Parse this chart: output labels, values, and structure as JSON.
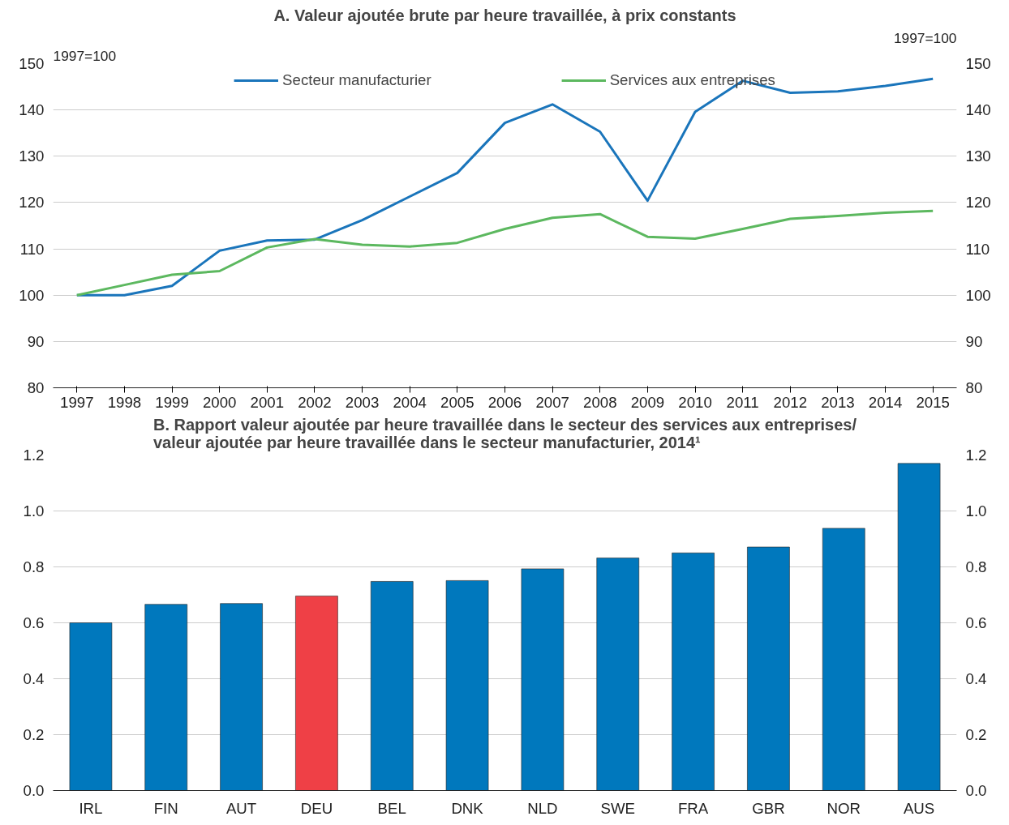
{
  "chart_data": [
    {
      "type": "line",
      "title": "A. Valeur ajoutée brute par heure travaillée, à prix constants",
      "ylabel": "1997=100",
      "y2label": "1997=100",
      "x": [
        1997,
        1998,
        1999,
        2000,
        2001,
        2002,
        2003,
        2004,
        2005,
        2006,
        2007,
        2008,
        2009,
        2010,
        2011,
        2012,
        2013,
        2014,
        2015
      ],
      "series": [
        {
          "name": "Secteur manufacturier",
          "color": "#1a75bb",
          "values": [
            100,
            100,
            102,
            109.6,
            111.8,
            112,
            116.2,
            121.3,
            126.4,
            137.2,
            141.2,
            135.3,
            120.4,
            139.6,
            146.3,
            143.7,
            144,
            145.2,
            146.7
          ]
        },
        {
          "name": "Services aux entreprises",
          "color": "#5cb85f",
          "values": [
            100,
            102.2,
            104.4,
            105.2,
            110.3,
            112.1,
            110.9,
            110.5,
            111.3,
            114.3,
            116.7,
            117.5,
            112.6,
            112.2,
            114.3,
            116.5,
            117.1,
            117.8,
            118.2
          ]
        }
      ],
      "xlim": [
        1996.5,
        2015.5
      ],
      "xticks": [
        1997,
        1998,
        1999,
        2000,
        2001,
        2002,
        2003,
        2004,
        2005,
        2006,
        2007,
        2008,
        2009,
        2010,
        2011,
        2012,
        2013,
        2014,
        2015
      ],
      "ylim": [
        80,
        150
      ],
      "yticks": [
        80,
        90,
        100,
        110,
        120,
        130,
        140,
        150
      ],
      "y2lim": [
        80,
        150
      ],
      "y2ticks": [
        80,
        90,
        100,
        110,
        120,
        130,
        140,
        150
      ],
      "grid": "y",
      "legend": "top",
      "marker": "none",
      "line_style": "solid"
    },
    {
      "type": "bar",
      "title": "B. Rapport valeur ajoutée par heure travaillée dans le secteur des services aux entreprises/\nvaleur ajoutée par heure travaillée dans le secteur manufacturier, 2014¹",
      "categories": [
        "IRL",
        "FIN",
        "AUT",
        "DEU",
        "BEL",
        "DNK",
        "NLD",
        "SWE",
        "FRA",
        "GBR",
        "NOR",
        "AUS"
      ],
      "values": [
        0.6,
        0.666,
        0.669,
        0.696,
        0.748,
        0.751,
        0.793,
        0.832,
        0.85,
        0.871,
        0.938,
        1.17
      ],
      "colors": [
        "#0078bd",
        "#0078bd",
        "#0078bd",
        "#ef4046",
        "#0078bd",
        "#0078bd",
        "#0078bd",
        "#0078bd",
        "#0078bd",
        "#0078bd",
        "#0078bd",
        "#0078bd"
      ],
      "ylim": [
        0,
        1.2
      ],
      "yticks": [
        {
          "value": 0,
          "label": "0.0"
        },
        {
          "value": 0.2,
          "label": "0.2"
        },
        {
          "value": 0.4,
          "label": "0.4"
        },
        {
          "value": 0.6,
          "label": "0.6"
        },
        {
          "value": 0.8,
          "label": "0.8"
        },
        {
          "value": 1.0,
          "label": "1.0"
        },
        {
          "value": 1.2,
          "label": "1.2"
        }
      ],
      "y2lim": [
        0,
        1.2
      ],
      "y2ticks": [
        {
          "value": 0,
          "label": "0.0"
        },
        {
          "value": 0.2,
          "label": "0.2"
        },
        {
          "value": 0.4,
          "label": "0.4"
        },
        {
          "value": 0.6,
          "label": "0.6"
        },
        {
          "value": 0.8,
          "label": "0.8"
        },
        {
          "value": 1.0,
          "label": "1.0"
        },
        {
          "value": 1.2,
          "label": "1.2"
        }
      ],
      "grid": "y"
    }
  ]
}
